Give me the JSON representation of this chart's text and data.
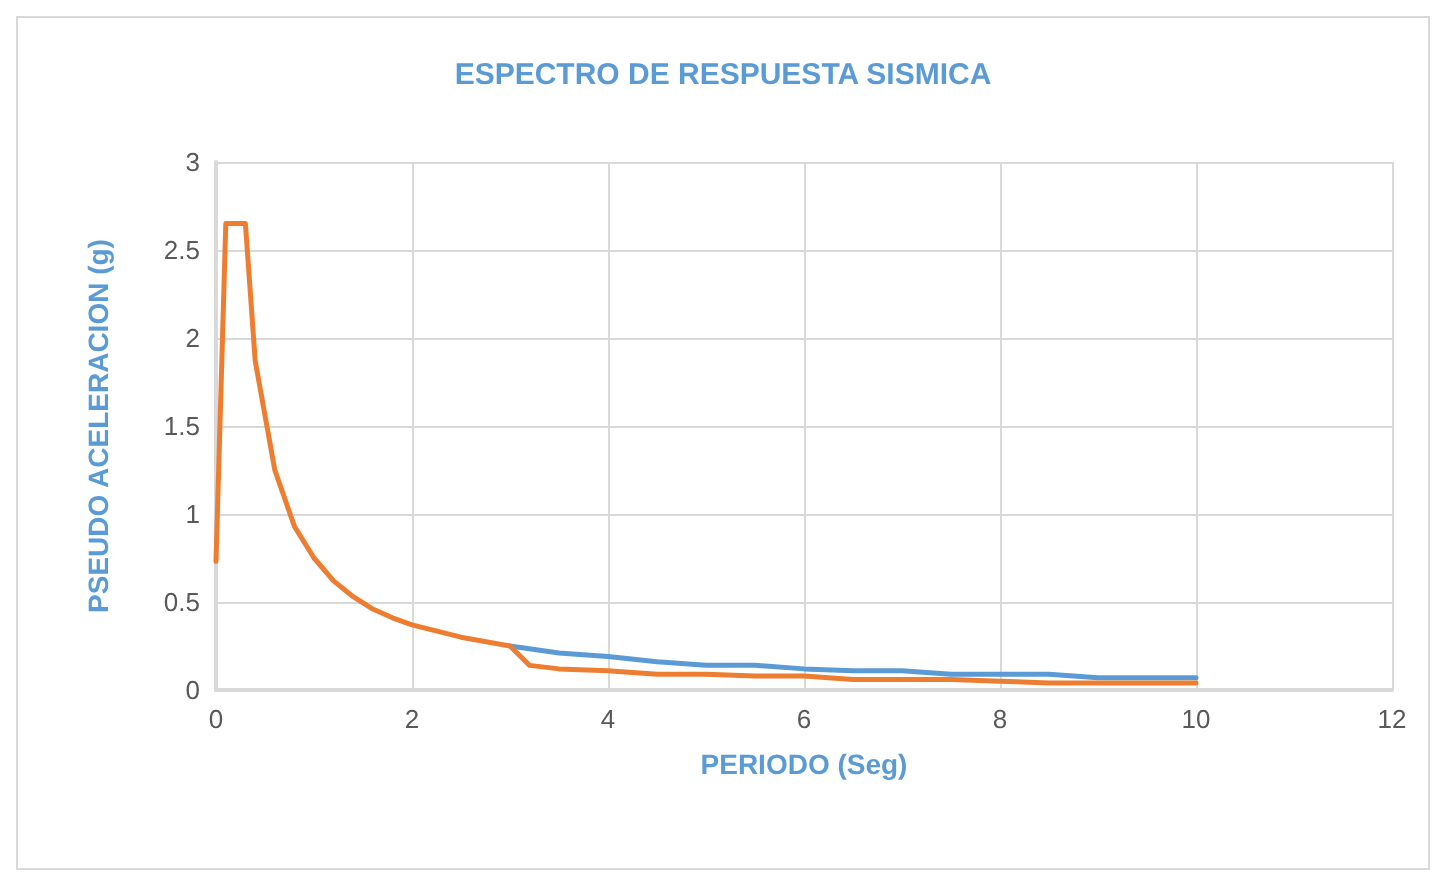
{
  "chart_data": {
    "type": "line",
    "title": "ESPECTRO DE RESPUESTA SISMICA",
    "xlabel": "PERIODO (Seg)",
    "ylabel": "PSEUDO ACELERACION (g)",
    "series": [
      {
        "color": "#5b9bd5",
        "x": [
          3,
          3.5,
          4,
          4.5,
          5,
          5.5,
          6,
          6.5,
          7,
          7.5,
          8,
          8.5,
          9,
          10
        ],
        "values": [
          0.25,
          0.21,
          0.19,
          0.16,
          0.14,
          0.14,
          0.12,
          0.11,
          0.11,
          0.09,
          0.09,
          0.09,
          0.07,
          0.07
        ]
      },
      {
        "color": "#ed7d31",
        "x": [
          0,
          0.1,
          0.3,
          0.4,
          0.6,
          0.8,
          1,
          1.2,
          1.4,
          1.6,
          1.8,
          2,
          2.5,
          3,
          3.2,
          3.5,
          4,
          4.5,
          5,
          5.5,
          6,
          6.5,
          7,
          7.5,
          8,
          8.5,
          9,
          10
        ],
        "values": [
          0.73,
          2.65,
          2.65,
          1.87,
          1.25,
          0.93,
          0.75,
          0.62,
          0.53,
          0.46,
          0.41,
          0.37,
          0.3,
          0.25,
          0.14,
          0.12,
          0.11,
          0.09,
          0.09,
          0.08,
          0.08,
          0.06,
          0.06,
          0.06,
          0.05,
          0.04,
          0.04,
          0.04
        ]
      }
    ],
    "xlim": [
      0,
      12
    ],
    "xticks": [
      0,
      2,
      4,
      6,
      8,
      10,
      12
    ],
    "ylim": [
      0,
      3
    ],
    "yticks": [
      0,
      0.5,
      1,
      1.5,
      2,
      2.5,
      3
    ],
    "grid": true,
    "marker": "none",
    "line_style": "solid"
  }
}
